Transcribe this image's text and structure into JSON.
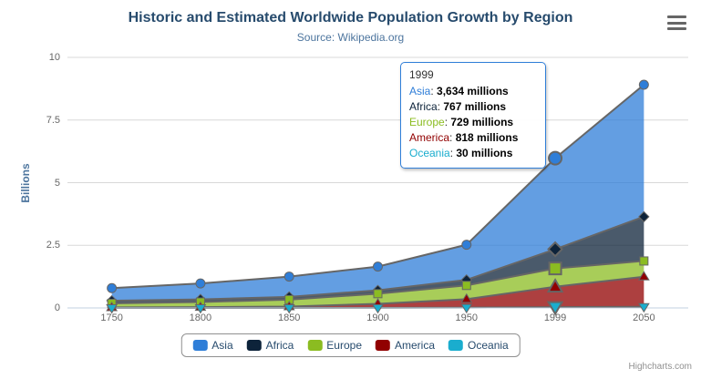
{
  "chart": {
    "title": "Historic and Estimated Worldwide Population Growth by Region",
    "subtitle": "Source: Wikipedia.org",
    "y_axis_title": "Billions",
    "credits": "Highcharts.com"
  },
  "colors": {
    "title": "#274b6d",
    "subtitle": "#4d759e",
    "axis_labels": "#666666",
    "grid_line": "#d8d8d8",
    "axis_line": "#c0d0e0",
    "series_outline": "#666666",
    "tooltip_border": "#2f7ed8",
    "legend_border": "#909090",
    "legend_text": "#274b6d"
  },
  "tooltip": {
    "header": "1999",
    "suffix": "millions",
    "rows": [
      {
        "name": "Asia",
        "value": "3,634"
      },
      {
        "name": "Africa",
        "value": "767"
      },
      {
        "name": "Europe",
        "value": "729"
      },
      {
        "name": "America",
        "value": "818"
      },
      {
        "name": "Oceania",
        "value": "30"
      }
    ]
  },
  "chart_data": {
    "type": "area",
    "stacking": "normal",
    "title": "Historic and Estimated Worldwide Population Growth by Region",
    "subtitle": "Source: Wikipedia.org",
    "xlabel": "",
    "ylabel": "Billions",
    "unit": "millions",
    "ylim": [
      0,
      10
    ],
    "yticks": [
      0,
      2.5,
      5,
      7.5,
      10
    ],
    "ytick_labels": [
      "0",
      "2.5",
      "5",
      "7.5",
      "10"
    ],
    "grid": true,
    "legend_position": "bottom",
    "categories": [
      "1750",
      "1800",
      "1850",
      "1900",
      "1950",
      "1999",
      "2050"
    ],
    "hover_index": 5,
    "series": [
      {
        "name": "Asia",
        "color": "#2f7ed8",
        "marker": "circle",
        "values": [
          502,
          635,
          809,
          947,
          1402,
          3634,
          5268
        ]
      },
      {
        "name": "Africa",
        "color": "#0d233a",
        "marker": "diamond",
        "values": [
          106,
          107,
          111,
          133,
          221,
          767,
          1766
        ]
      },
      {
        "name": "Europe",
        "color": "#8bbc21",
        "marker": "square",
        "values": [
          163,
          203,
          276,
          408,
          547,
          729,
          628
        ]
      },
      {
        "name": "America",
        "color": "#910000",
        "marker": "triangle",
        "values": [
          18,
          31,
          54,
          156,
          339,
          818,
          1201
        ]
      },
      {
        "name": "Oceania",
        "color": "#1aadce",
        "marker": "triangle-down",
        "values": [
          2,
          2,
          2,
          6,
          13,
          30,
          46
        ]
      }
    ]
  }
}
